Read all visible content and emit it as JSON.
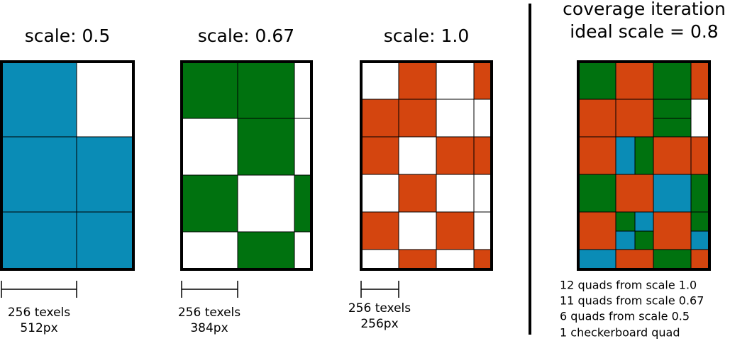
{
  "panels": [
    {
      "title": "scale: 0.5",
      "bar_label": [
        "256 texels",
        "512px"
      ]
    },
    {
      "title": "scale: 0.67",
      "bar_label": [
        "256 texels",
        "384px"
      ]
    },
    {
      "title": "scale: 1.0",
      "bar_label": [
        "256 texels",
        "256px"
      ]
    }
  ],
  "coverage": {
    "title": [
      "coverage iteration",
      "ideal scale = 0.8"
    ],
    "stats": [
      "12 quads from scale 1.0",
      "11 quads from scale 0.67",
      "6 quads from scale 0.5",
      "1 checkerboard quad"
    ]
  }
}
